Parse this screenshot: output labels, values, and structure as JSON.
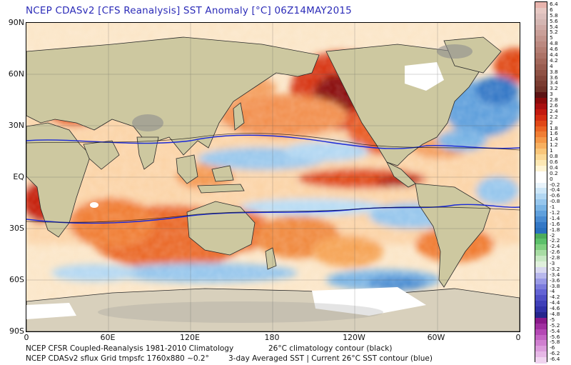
{
  "title": "NCEP CDASv2 [CFS Reanalysis] SST Anomaly [°C] 06Z14MAY2015",
  "lat_labels": [
    "90N",
    "60N",
    "30N",
    "EQ",
    "30S",
    "60S",
    "90S"
  ],
  "lon_labels": [
    "0",
    "60E",
    "120E",
    "180",
    "120W",
    "60W",
    "0"
  ],
  "footer": {
    "line1_left": "NCEP CFSR Coupled-Reanalysis 1981-2010 Climatology",
    "line1_right": "26°C climatology contour (black)",
    "line2_left": "NCEP CDASv2 sflux Grid tmpsfc 1760x880 ~0.2°",
    "line2_right": "3-day Averaged SST | Current 26°C SST contour (blue)"
  },
  "colorbar": {
    "labels": [
      "6.4",
      "6",
      "5.8",
      "5.6",
      "5.4",
      "5.2",
      "5",
      "4.8",
      "4.6",
      "4.4",
      "4.2",
      "4",
      "3.8",
      "3.6",
      "3.4",
      "3.2",
      "3",
      "2.8",
      "2.6",
      "2.4",
      "2.2",
      "2",
      "1.8",
      "1.6",
      "1.4",
      "1.2",
      "1",
      "0.8",
      "0.6",
      "0.4",
      "0.2",
      "0",
      "-0.2",
      "-0.4",
      "-0.6",
      "-0.8",
      "-1",
      "-1.2",
      "-1.4",
      "-1.6",
      "-1.8",
      "-2",
      "-2.2",
      "-2.4",
      "-2.6",
      "-2.8",
      "-3",
      "-3.2",
      "-3.4",
      "-3.6",
      "-3.8",
      "-4",
      "-4.2",
      "-4.4",
      "-4.6",
      "-4.8",
      "-5",
      "-5.2",
      "-5.4",
      "-5.6",
      "-5.8",
      "-6",
      "-6.2",
      "-6.4"
    ],
    "colors": [
      "#e8b4ad",
      "#e6c8c3",
      "#dcbfbc",
      "#d4b6b2",
      "#cfaaa5",
      "#c99f98",
      "#c2948c",
      "#bb8980",
      "#b47e73",
      "#ac7367",
      "#a3685b",
      "#995d50",
      "#8f5245",
      "#84473b",
      "#7a3c31",
      "#703228",
      "#5c1414",
      "#8b0b0b",
      "#a81010",
      "#c21a10",
      "#d42d12",
      "#e04818",
      "#ea6424",
      "#f07e34",
      "#f49848",
      "#f7b060",
      "#f9c67a",
      "#fbd896",
      "#fde8b4",
      "#fff4d4",
      "#ffffff",
      "#ffffff",
      "#e8f3fb",
      "#cde6f7",
      "#b2d7f2",
      "#96c6ec",
      "#7ab4e4",
      "#60a0dc",
      "#4a8cd2",
      "#3478c6",
      "#2a70be",
      "#4dac5c",
      "#5cc06a",
      "#80d080",
      "#a8dca4",
      "#c8e8c4",
      "#e0f0dc",
      "#d8d8f0",
      "#b8b8ec",
      "#9a9ae6",
      "#7c7cdc",
      "#6464d4",
      "#5050c6",
      "#4040b8",
      "#3232a8",
      "#26268c",
      "#8a1a8a",
      "#a030a0",
      "#b448b4",
      "#c464c4",
      "#d080d0",
      "#dc9cdc",
      "#e6b8e6",
      "#f0d4f0"
    ]
  },
  "legend_contours": {
    "climatology_color": "#000000",
    "current_color": "#1a2ad8"
  }
}
